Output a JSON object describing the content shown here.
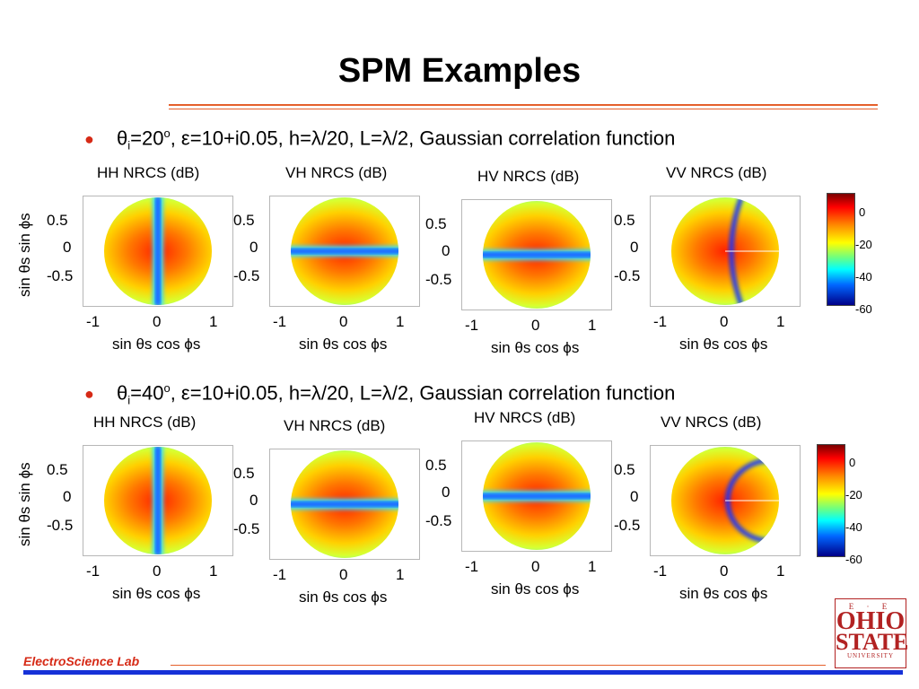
{
  "title": "SPM Examples",
  "rows": [
    {
      "bullet": "θi=20o, ε=10+i0.05, h=λ/20, L=λ/2, Gaussian correlation function",
      "bullet_parts": {
        "theta": "θ",
        "sub": "i",
        "val": "=20",
        "sup": "o",
        "rest": ", ε=10+i0.05, h=λ/20, L=λ/2, Gaussian correlation function"
      },
      "panels": [
        {
          "title": "HH NRCS (dB)",
          "type": "hh",
          "yticks": [
            "0.5",
            "0",
            "-0.5"
          ],
          "xticks": [
            "-1",
            "0",
            "1"
          ],
          "xlabel": "sin θs cos ϕs",
          "ylabel": "sin θs sin ϕs"
        },
        {
          "title": "VH NRCS (dB)",
          "type": "vh",
          "yticks": [
            "0.5",
            "0",
            "-0.5"
          ],
          "xticks": [
            "-1",
            "0",
            "1"
          ],
          "xlabel": "sin θs cos ϕs"
        },
        {
          "title": "HV NRCS (dB)",
          "type": "hv",
          "yticks": [
            "0.5",
            "0",
            "-0.5"
          ],
          "xticks": [
            "-1",
            "0",
            "1"
          ],
          "xlabel": "sin θs cos ϕs"
        },
        {
          "title": "VV NRCS (dB)",
          "type": "vv1",
          "yticks": [
            "0.5",
            "0",
            "-0.5"
          ],
          "xticks": [
            "-1",
            "0",
            "1"
          ],
          "xlabel": "sin θs cos ϕs"
        }
      ],
      "colorbar_ticks": [
        "0",
        "-20",
        "-40",
        "-60"
      ]
    },
    {
      "bullet": "θi=40o, ε=10+i0.05, h=λ/20, L=λ/2, Gaussian correlation function",
      "bullet_parts": {
        "theta": "θ",
        "sub": "i",
        "val": "=40",
        "sup": "o",
        "rest": ", ε=10+i0.05, h=λ/20, L=λ/2, Gaussian correlation function"
      },
      "panels": [
        {
          "title": "HH NRCS (dB)",
          "type": "hh2",
          "yticks": [
            "0.5",
            "0",
            "-0.5"
          ],
          "xticks": [
            "-1",
            "0",
            "1"
          ],
          "xlabel": "sin θs cos ϕs",
          "ylabel": "sin θs sin ϕs"
        },
        {
          "title": "VH NRCS (dB)",
          "type": "vh2",
          "yticks": [
            "0.5",
            "0",
            "-0.5"
          ],
          "xticks": [
            "-1",
            "0",
            "1"
          ],
          "xlabel": "sin θs cos ϕs"
        },
        {
          "title": "HV NRCS (dB)",
          "type": "hv2",
          "yticks": [
            "0.5",
            "0",
            "-0.5"
          ],
          "xticks": [
            "-1",
            "0",
            "1"
          ],
          "xlabel": "sin θs cos ϕs"
        },
        {
          "title": "VV NRCS (dB)",
          "type": "vv2",
          "yticks": [
            "0.5",
            "0",
            "-0.5"
          ],
          "xticks": [
            "-1",
            "0",
            "1"
          ],
          "xlabel": "sin θs cos ϕs"
        }
      ],
      "colorbar_ticks": [
        "0",
        "-20",
        "-40",
        "-60"
      ]
    }
  ],
  "footer": "ElectroScience Lab",
  "logo": {
    "top": "E · E",
    "line1": "OHIO",
    "line2": "STATE",
    "line3": "UNIVERSITY"
  },
  "colors": {
    "accent": "#e5602b",
    "footer_bar": "#1631d8",
    "footer_text": "#d62a16"
  }
}
